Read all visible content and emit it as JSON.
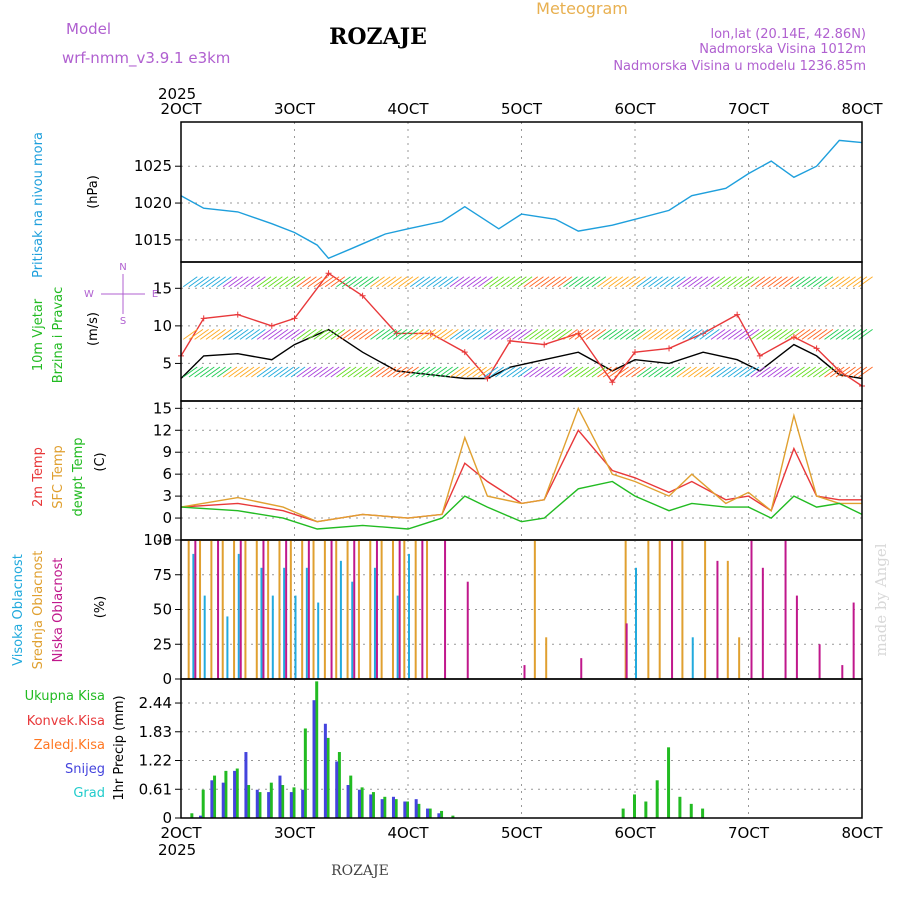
{
  "header": {
    "model_label": "Model",
    "model_name": "wrf-nmm_v3.9.1 e3km",
    "location": "ROZAJE",
    "meteogram": "Meteogram",
    "lonlat": "lon,lat (20.14E, 42.86N)",
    "altitude": "Nadmorska Visina 1012m",
    "model_altitude": "Nadmorska Visina u modelu 1236.85m"
  },
  "footer": {
    "location": "ROZAJE",
    "watermark": "made by Angel"
  },
  "colors": {
    "pressure": "#1e9fdc",
    "temp2m": "#e8383a",
    "sfc": "#e0a030",
    "dewpt": "#22bb22",
    "high_cloud": "#22aadd",
    "mid_cloud": "#e0a030",
    "low_cloud": "#c0188c",
    "precip_total": "#22bb22",
    "precip_conv": "#e8383a",
    "precip_strat": "#ff7722",
    "snow": "#4444dd",
    "grad": "#22cccc",
    "header": "#b060d0",
    "meteogram": "#e8b050"
  },
  "chart_data": [
    {
      "type": "line",
      "panel": "pressure",
      "ylabel_parts": [
        "Pritisak na nivou mora",
        "(hPa)"
      ],
      "x_top": [
        "2025",
        "2OCT",
        "3OCT",
        "4OCT",
        "5OCT",
        "6OCT",
        "7OCT",
        "8OCT"
      ],
      "yticks": [
        1015,
        1020,
        1025
      ],
      "ylim": [
        1012,
        1031
      ],
      "series": [
        {
          "name": "Pritisak",
          "x": [
            2.0,
            2.2,
            2.5,
            2.8,
            3.0,
            3.2,
            3.3,
            3.5,
            3.8,
            4.0,
            4.3,
            4.5,
            4.8,
            5.0,
            5.3,
            5.5,
            5.8,
            6.0,
            6.3,
            6.5,
            6.8,
            7.0,
            7.2,
            7.4,
            7.6,
            7.8,
            8.0
          ],
          "values": [
            1021,
            1019.3,
            1018.8,
            1017.2,
            1016,
            1014.3,
            1012.5,
            1013.8,
            1015.8,
            1016.5,
            1017.5,
            1019.5,
            1016.5,
            1018.5,
            1017.8,
            1016.2,
            1017,
            1017.8,
            1019,
            1021,
            1022,
            1024,
            1025.7,
            1023.5,
            1025,
            1028.5,
            1028.2
          ]
        }
      ]
    },
    {
      "type": "line",
      "panel": "wind",
      "ylabel_parts": [
        "10m Vjetar",
        "Brzina i Pravac",
        "(m/s)"
      ],
      "compass": [
        "N",
        "W",
        "E",
        "S"
      ],
      "yticks": [
        5,
        10,
        15
      ],
      "ylim": [
        0,
        18.5
      ],
      "series": [
        {
          "name": "Brzina",
          "x": [
            2.0,
            2.2,
            2.5,
            2.8,
            3.0,
            3.3,
            3.6,
            3.9,
            4.2,
            4.5,
            4.7,
            4.9,
            5.2,
            5.5,
            5.8,
            6.0,
            6.3,
            6.6,
            6.9,
            7.1,
            7.4,
            7.6,
            7.8,
            8.0
          ],
          "values": [
            3,
            6,
            6.3,
            5.5,
            7.5,
            9.5,
            6.5,
            4,
            3.5,
            3,
            3,
            4.5,
            5.5,
            6.5,
            4,
            5.5,
            5,
            6.5,
            5.5,
            4,
            7.5,
            6,
            3.5,
            3
          ]
        },
        {
          "name": "Udari",
          "x": [
            2.0,
            2.2,
            2.5,
            2.8,
            3.0,
            3.3,
            3.6,
            3.9,
            4.2,
            4.5,
            4.7,
            4.9,
            5.2,
            5.5,
            5.8,
            6.0,
            6.3,
            6.6,
            6.9,
            7.1,
            7.4,
            7.6,
            7.8,
            8.0
          ],
          "values": [
            6,
            11,
            11.5,
            10,
            11,
            17,
            14,
            9,
            9,
            6.5,
            3,
            8,
            7.5,
            9,
            2.5,
            6.5,
            7,
            9,
            11.5,
            6,
            8.5,
            7,
            4,
            2
          ]
        }
      ]
    },
    {
      "type": "line",
      "panel": "temperature",
      "ylabel_parts": [
        "2m Temp",
        "SFC Temp",
        "dewpt Temp",
        "(C)"
      ],
      "yticks": [
        -3,
        0,
        3,
        6,
        9,
        12,
        15
      ],
      "ylim": [
        -3,
        16
      ],
      "x": [
        2.0,
        2.5,
        2.9,
        3.2,
        3.6,
        4.0,
        4.3,
        4.5,
        4.7,
        5.0,
        5.2,
        5.5,
        5.8,
        6.0,
        6.3,
        6.5,
        6.8,
        7.0,
        7.2,
        7.4,
        7.6,
        7.8,
        8.0
      ],
      "series": [
        {
          "name": "2m Temp",
          "values": [
            1.5,
            2,
            1,
            -0.5,
            0.5,
            0,
            0.5,
            7.5,
            5,
            2,
            2.5,
            12,
            6.5,
            5.5,
            3.5,
            5,
            2.5,
            3,
            1,
            9.5,
            3,
            2.5,
            2.5
          ]
        },
        {
          "name": "SFC Temp",
          "values": [
            1.5,
            2.8,
            1.5,
            -0.5,
            0.5,
            0,
            0.5,
            11,
            3,
            2,
            2.5,
            15,
            6,
            5,
            3,
            6,
            2,
            3.5,
            1,
            14,
            3,
            2,
            2
          ]
        },
        {
          "name": "dewpt Temp",
          "values": [
            1.5,
            1,
            0,
            -1.5,
            -1,
            -1.5,
            0,
            3,
            1.5,
            -0.5,
            0,
            4,
            5,
            3,
            1,
            2,
            1.5,
            1.5,
            0,
            3,
            1.5,
            2,
            0.5
          ]
        }
      ]
    },
    {
      "type": "bar",
      "panel": "clouds",
      "ylabel_parts": [
        "Visoka Oblacnost",
        "Srednja Oblacnost",
        "Niska Oblacnost",
        "(%)"
      ],
      "yticks": [
        0,
        25,
        50,
        75,
        100
      ],
      "ylim": [
        0,
        100
      ],
      "series": [
        {
          "name": "Visoka Oblacnost",
          "x": [
            2.1,
            2.2,
            2.4,
            2.5,
            2.7,
            2.8,
            2.9,
            3.0,
            3.1,
            3.2,
            3.4,
            3.5,
            3.7,
            3.9,
            4.0,
            6.0,
            6.5
          ],
          "values": [
            90,
            60,
            45,
            90,
            80,
            60,
            80,
            60,
            80,
            55,
            85,
            70,
            80,
            60,
            90,
            80,
            30
          ]
        },
        {
          "name": "Srednja Oblacnost",
          "x": [
            2.05,
            2.15,
            2.25,
            2.35,
            2.45,
            2.55,
            2.65,
            2.75,
            2.85,
            2.95,
            3.05,
            3.15,
            3.25,
            3.35,
            3.45,
            3.55,
            3.65,
            3.75,
            3.85,
            3.95,
            4.05,
            4.15,
            5.1,
            5.2,
            5.9,
            6.1,
            6.2,
            6.4,
            6.6,
            6.8,
            6.9
          ],
          "values": [
            100,
            100,
            100,
            100,
            100,
            100,
            100,
            100,
            100,
            100,
            100,
            100,
            100,
            100,
            100,
            100,
            100,
            100,
            100,
            100,
            100,
            100,
            100,
            30,
            100,
            100,
            100,
            100,
            100,
            85,
            30
          ]
        },
        {
          "name": "Niska Oblacnost",
          "x": [
            2.1,
            2.3,
            2.5,
            2.7,
            2.9,
            3.1,
            3.3,
            3.5,
            3.7,
            3.9,
            4.1,
            4.3,
            4.5,
            5.0,
            5.5,
            5.9,
            6.3,
            6.7,
            7.0,
            7.1,
            7.3,
            7.4,
            7.6,
            7.8,
            7.9
          ],
          "values": [
            100,
            100,
            100,
            100,
            100,
            100,
            100,
            100,
            100,
            100,
            100,
            100,
            70,
            10,
            15,
            40,
            100,
            85,
            100,
            80,
            100,
            60,
            25,
            10,
            55
          ]
        }
      ]
    },
    {
      "type": "bar",
      "panel": "precipitation",
      "ylabel_parts": [
        "1hr Precip (mm)"
      ],
      "legend": [
        "Ukupna Kisa",
        "Konvek.Kisa",
        "Zaledj.Kisa",
        "Snijeg",
        "Grad"
      ],
      "yticks": [
        0,
        0.61,
        1.22,
        1.83,
        2.44
      ],
      "ylim": [
        0,
        2.95
      ],
      "x_bottom": [
        "2OCT",
        "3OCT",
        "4OCT",
        "5OCT",
        "6OCT",
        "7OCT",
        "8OCT"
      ],
      "date_bottom": "2025",
      "series": [
        {
          "name": "Ukupna Kisa",
          "x": [
            2.1,
            2.2,
            2.3,
            2.4,
            2.5,
            2.6,
            2.7,
            2.8,
            2.9,
            3.0,
            3.1,
            3.2,
            3.3,
            3.4,
            3.5,
            3.6,
            3.7,
            3.8,
            3.9,
            4.0,
            4.1,
            4.2,
            4.3,
            4.4,
            5.9,
            6.0,
            6.1,
            6.2,
            6.3,
            6.4,
            6.5,
            6.6
          ],
          "values": [
            0.1,
            0.6,
            0.9,
            1.0,
            1.05,
            0.7,
            0.55,
            0.75,
            0.7,
            0.65,
            1.9,
            2.9,
            1.7,
            1.4,
            0.9,
            0.65,
            0.55,
            0.45,
            0.4,
            0.35,
            0.3,
            0.2,
            0.15,
            0.05,
            0.2,
            0.5,
            0.35,
            0.8,
            1.5,
            0.45,
            0.3,
            0.2
          ]
        },
        {
          "name": "Snijeg",
          "x": [
            2.15,
            2.25,
            2.35,
            2.45,
            2.55,
            2.65,
            2.75,
            2.85,
            2.95,
            3.05,
            3.15,
            3.25,
            3.35,
            3.45,
            3.55,
            3.65,
            3.75,
            3.85,
            3.95,
            4.05,
            4.15,
            4.25
          ],
          "values": [
            0.05,
            0.8,
            0.75,
            1.0,
            1.4,
            0.6,
            0.55,
            0.9,
            0.55,
            0.6,
            2.5,
            2.0,
            1.2,
            0.7,
            0.6,
            0.5,
            0.4,
            0.45,
            0.35,
            0.4,
            0.2,
            0.1
          ]
        }
      ]
    }
  ]
}
